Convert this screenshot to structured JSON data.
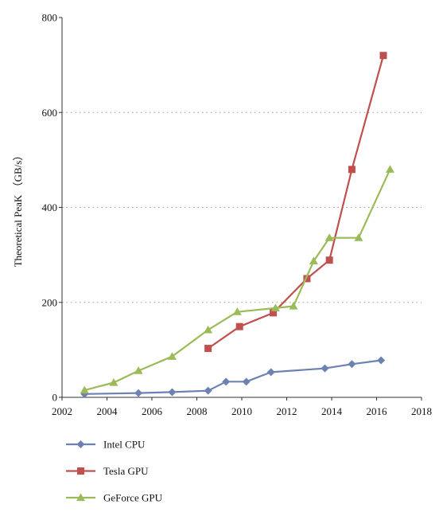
{
  "chart_data": {
    "type": "line",
    "title": "",
    "xlabel": "",
    "ylabel": "Theoretical PeaK （GB/s）",
    "xlim": [
      2002,
      2018
    ],
    "ylim": [
      0,
      800
    ],
    "xticks": [
      2002,
      2004,
      2006,
      2008,
      2010,
      2012,
      2014,
      2016,
      2018
    ],
    "yticks": [
      0,
      200,
      400,
      600,
      800
    ],
    "grid": "horizontal dotted",
    "legend_position": "bottom-left",
    "series": [
      {
        "name": "Intel CPU",
        "color": "#6d82b3",
        "marker": "diamond",
        "points": [
          [
            2003.0,
            7
          ],
          [
            2005.4,
            9
          ],
          [
            2006.9,
            11
          ],
          [
            2008.5,
            14
          ],
          [
            2009.3,
            33
          ],
          [
            2010.2,
            33
          ],
          [
            2011.3,
            53
          ],
          [
            2013.7,
            61
          ],
          [
            2014.9,
            70
          ],
          [
            2016.2,
            78
          ]
        ]
      },
      {
        "name": "Tesla GPU",
        "color": "#c0504d",
        "marker": "square",
        "points": [
          [
            2008.5,
            103
          ],
          [
            2009.9,
            149
          ],
          [
            2011.4,
            178
          ],
          [
            2012.9,
            250
          ],
          [
            2013.9,
            289
          ],
          [
            2014.9,
            480
          ],
          [
            2016.3,
            720
          ]
        ]
      },
      {
        "name": "GeForce GPU",
        "color": "#9bbb59",
        "marker": "triangle",
        "points": [
          [
            2003.0,
            15
          ],
          [
            2004.3,
            31
          ],
          [
            2005.4,
            56
          ],
          [
            2006.9,
            86
          ],
          [
            2008.5,
            142
          ],
          [
            2009.8,
            180
          ],
          [
            2011.5,
            188
          ],
          [
            2012.3,
            192
          ],
          [
            2013.2,
            287
          ],
          [
            2013.9,
            336
          ],
          [
            2015.2,
            336
          ],
          [
            2016.6,
            480
          ]
        ]
      }
    ]
  }
}
